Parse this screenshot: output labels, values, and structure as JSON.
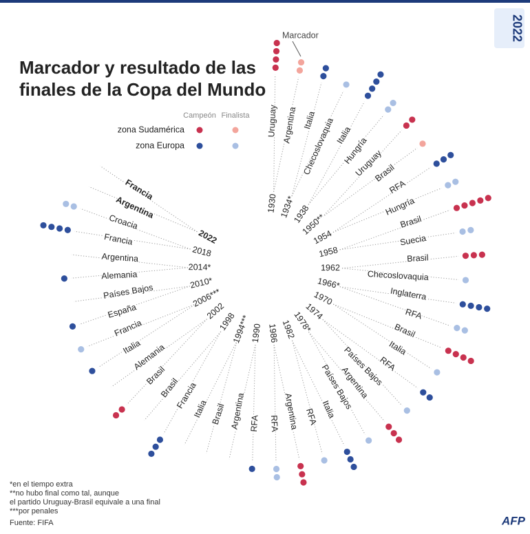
{
  "chart_data": {
    "type": "radial-dots",
    "title": [
      "Marcador y resultado de las",
      "finales de la Copa del Mundo"
    ],
    "annotation": "Marcador",
    "legend": {
      "columns": [
        "Campeón",
        "Finalista"
      ],
      "rows": [
        {
          "label": "zona Sudamérica",
          "colors": [
            "#c8324f",
            "#f3a59c"
          ]
        },
        {
          "label": "zona Europa",
          "colors": [
            "#2e4f9c",
            "#a9bfe3"
          ]
        }
      ]
    },
    "finals": [
      {
        "year": "1930",
        "teams": [
          {
            "name": "Uruguay",
            "goals": 4,
            "zone": 0
          },
          {
            "name": "Argentina",
            "goals": 2,
            "zone": 0
          }
        ]
      },
      {
        "year": "1934*",
        "teams": [
          {
            "name": "Italia",
            "goals": 2,
            "zone": 1
          },
          {
            "name": "Checoslovaquia",
            "goals": 1,
            "zone": 1
          }
        ]
      },
      {
        "year": "1938",
        "teams": [
          {
            "name": "Italia",
            "goals": 4,
            "zone": 1
          },
          {
            "name": "Hungría",
            "goals": 2,
            "zone": 1
          }
        ]
      },
      {
        "year": "1950**",
        "teams": [
          {
            "name": "Uruguay",
            "goals": 2,
            "zone": 0
          },
          {
            "name": "Brasil",
            "goals": 1,
            "zone": 0
          }
        ]
      },
      {
        "year": "1954",
        "teams": [
          {
            "name": "RFA",
            "goals": 3,
            "zone": 1
          },
          {
            "name": "Hungría",
            "goals": 2,
            "zone": 1
          }
        ]
      },
      {
        "year": "1958",
        "teams": [
          {
            "name": "Brasil",
            "goals": 5,
            "zone": 0
          },
          {
            "name": "Suecia",
            "goals": 2,
            "zone": 1
          }
        ]
      },
      {
        "year": "1962",
        "teams": [
          {
            "name": "Brasil",
            "goals": 3,
            "zone": 0
          },
          {
            "name": "Checoslovaquia",
            "goals": 1,
            "zone": 1
          }
        ]
      },
      {
        "year": "1966*",
        "teams": [
          {
            "name": "Inglaterra",
            "goals": 4,
            "zone": 1
          },
          {
            "name": "RFA",
            "goals": 2,
            "zone": 1
          }
        ]
      },
      {
        "year": "1970",
        "teams": [
          {
            "name": "Brasil",
            "goals": 4,
            "zone": 0
          },
          {
            "name": "Italia",
            "goals": 1,
            "zone": 1
          }
        ]
      },
      {
        "year": "1974",
        "teams": [
          {
            "name": "RFA",
            "goals": 2,
            "zone": 1
          },
          {
            "name": "Países Bajos",
            "goals": 1,
            "zone": 1
          }
        ]
      },
      {
        "year": "1978*",
        "teams": [
          {
            "name": "Argentina",
            "goals": 3,
            "zone": 0
          },
          {
            "name": "Países Bajos",
            "goals": 1,
            "zone": 1
          }
        ]
      },
      {
        "year": "1982",
        "teams": [
          {
            "name": "Italia",
            "goals": 3,
            "zone": 1
          },
          {
            "name": "RFA",
            "goals": 1,
            "zone": 1
          }
        ]
      },
      {
        "year": "1986",
        "teams": [
          {
            "name": "Argentina",
            "goals": 3,
            "zone": 0
          },
          {
            "name": "RFA",
            "goals": 2,
            "zone": 1
          }
        ]
      },
      {
        "year": "1990",
        "teams": [
          {
            "name": "RFA",
            "goals": 1,
            "zone": 1
          },
          {
            "name": "Argentina",
            "goals": 0,
            "zone": 0
          }
        ]
      },
      {
        "year": "1994***",
        "teams": [
          {
            "name": "Brasil",
            "goals": 0,
            "zone": 0
          },
          {
            "name": "Italia",
            "goals": 0,
            "zone": 1
          }
        ]
      },
      {
        "year": "1998",
        "teams": [
          {
            "name": "Francia",
            "goals": 3,
            "zone": 1
          },
          {
            "name": "Brasil",
            "goals": 0,
            "zone": 0
          }
        ]
      },
      {
        "year": "2002",
        "teams": [
          {
            "name": "Brasil",
            "goals": 2,
            "zone": 0
          },
          {
            "name": "Alemania",
            "goals": 0,
            "zone": 1
          }
        ]
      },
      {
        "year": "2006***",
        "teams": [
          {
            "name": "Italia",
            "goals": 1,
            "zone": 1
          },
          {
            "name": "Francia",
            "goals": 1,
            "zone": 1
          }
        ]
      },
      {
        "year": "2010*",
        "teams": [
          {
            "name": "España",
            "goals": 1,
            "zone": 1
          },
          {
            "name": "Países Bajos",
            "goals": 0,
            "zone": 1
          }
        ]
      },
      {
        "year": "2014*",
        "teams": [
          {
            "name": "Alemania",
            "goals": 1,
            "zone": 1
          },
          {
            "name": "Argentina",
            "goals": 0,
            "zone": 0
          }
        ]
      },
      {
        "year": "2018",
        "teams": [
          {
            "name": "Francia",
            "goals": 4,
            "zone": 1
          },
          {
            "name": "Croacia",
            "goals": 2,
            "zone": 1
          }
        ]
      },
      {
        "year": "2022",
        "bold": true,
        "teams": [
          {
            "name": "Argentina",
            "goals": 0,
            "zone": 0
          },
          {
            "name": "Francia",
            "goals": 0,
            "zone": 1
          }
        ]
      }
    ],
    "footnotes": [
      "*en el tiempo extra",
      "**no hubo final como tal, aunque",
      "el partido Uruguay-Brasil equivale a una final",
      "***por penales"
    ],
    "source": "Fuente: FIFA",
    "logo": "2022",
    "brand": "AFP"
  }
}
